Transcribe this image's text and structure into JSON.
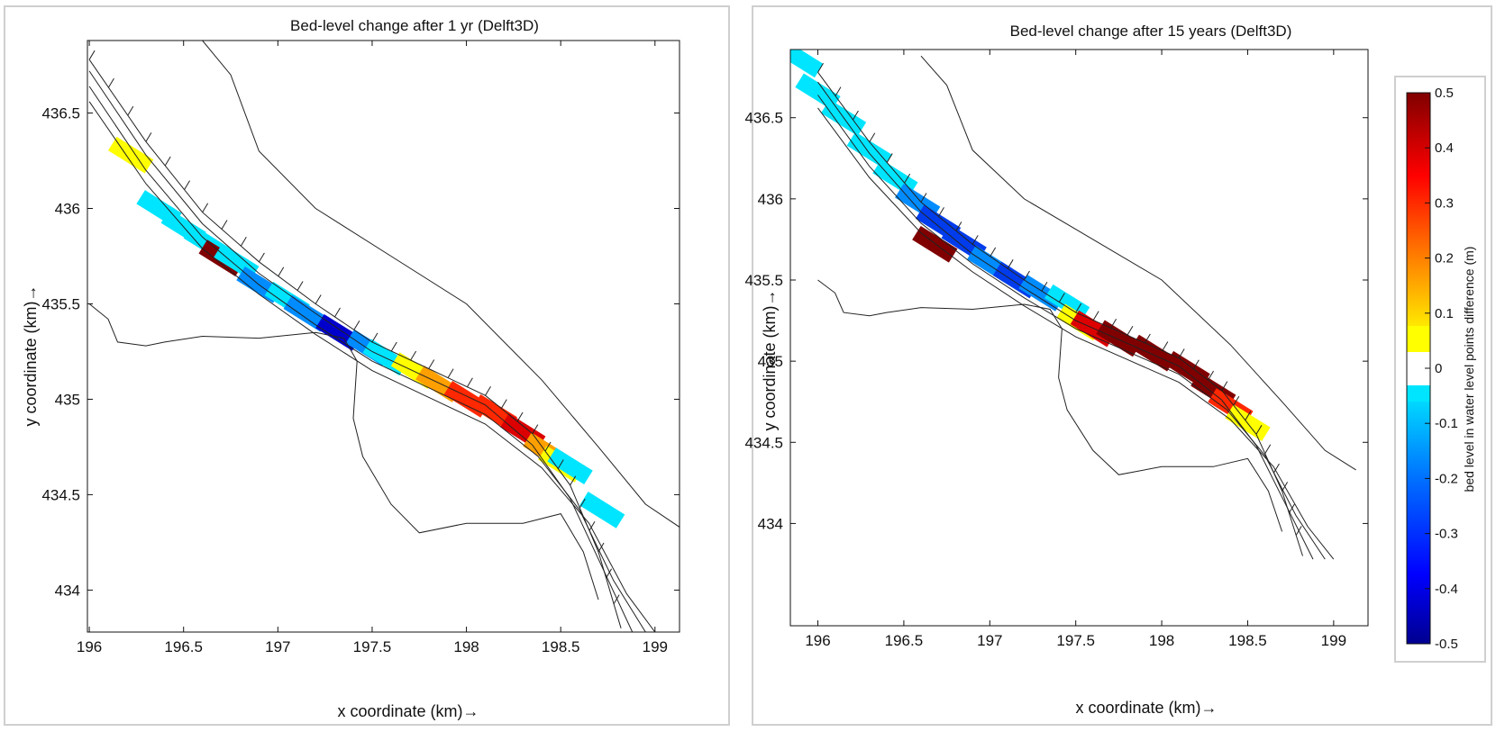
{
  "chart_data": [
    {
      "type": "heatmap",
      "title": "Bed-level change after 1 yr (Delft3D)",
      "xlabel": "x coordinate (km)→",
      "ylabel": "y coordinate (km)→",
      "xlim": [
        195.99,
        199.13
      ],
      "ylim": [
        433.78,
        436.88
      ],
      "xticks": [
        196,
        196.5,
        197,
        197.5,
        198,
        198.5,
        199
      ],
      "xtick_labels": [
        "196",
        "196.5",
        "197",
        "197.5",
        "198",
        "198.5",
        "199"
      ],
      "yticks": [
        434,
        434.5,
        435,
        435.5,
        436,
        436.5
      ],
      "ytick_labels": [
        "434",
        "434.5",
        "435",
        "435.5",
        "436",
        "436.5"
      ],
      "grid": false,
      "cells": [
        {
          "x": 196.22,
          "y": 436.28,
          "v": 0.1
        },
        {
          "x": 196.37,
          "y": 436.0,
          "v": -0.1
        },
        {
          "x": 196.5,
          "y": 435.9,
          "v": -0.1
        },
        {
          "x": 196.62,
          "y": 435.82,
          "v": -0.1
        },
        {
          "x": 196.7,
          "y": 435.74,
          "v": 0.5
        },
        {
          "x": 196.78,
          "y": 435.72,
          "v": -0.1
        },
        {
          "x": 196.9,
          "y": 435.6,
          "v": -0.2
        },
        {
          "x": 197.05,
          "y": 435.52,
          "v": -0.1
        },
        {
          "x": 197.15,
          "y": 435.45,
          "v": -0.2
        },
        {
          "x": 197.32,
          "y": 435.35,
          "v": -0.4
        },
        {
          "x": 197.48,
          "y": 435.27,
          "v": -0.2
        },
        {
          "x": 197.57,
          "y": 435.22,
          "v": -0.1
        },
        {
          "x": 197.72,
          "y": 435.15,
          "v": 0.1
        },
        {
          "x": 197.85,
          "y": 435.08,
          "v": 0.2
        },
        {
          "x": 198.0,
          "y": 435.0,
          "v": 0.3
        },
        {
          "x": 198.15,
          "y": 434.93,
          "v": 0.3
        },
        {
          "x": 198.3,
          "y": 434.83,
          "v": 0.4
        },
        {
          "x": 198.42,
          "y": 434.73,
          "v": 0.2
        },
        {
          "x": 198.5,
          "y": 434.66,
          "v": 0.1
        },
        {
          "x": 198.55,
          "y": 434.65,
          "v": -0.1
        },
        {
          "x": 198.72,
          "y": 434.42,
          "v": -0.1
        }
      ]
    },
    {
      "type": "heatmap",
      "title": "Bed-level change after 15 years (Delft3D)",
      "xlabel": "x coordinate (km)→",
      "ylabel": "y coordinate (km)→",
      "xlim": [
        195.84,
        199.2
      ],
      "ylim": [
        433.37,
        436.92
      ],
      "xticks": [
        196,
        196.5,
        197,
        197.5,
        198,
        198.5,
        199
      ],
      "xtick_labels": [
        "196",
        "196.5",
        "197",
        "197.5",
        "198",
        "198.5",
        "199"
      ],
      "yticks": [
        434,
        434.5,
        435,
        435.5,
        436,
        436.5
      ],
      "ytick_labels": [
        "434",
        "434.5",
        "435",
        "435.5",
        "436",
        "436.5"
      ],
      "grid": false,
      "cells": [
        {
          "x": 195.9,
          "y": 436.86,
          "v": -0.1
        },
        {
          "x": 196.0,
          "y": 436.66,
          "v": -0.1
        },
        {
          "x": 196.15,
          "y": 436.5,
          "v": -0.1
        },
        {
          "x": 196.3,
          "y": 436.3,
          "v": -0.1
        },
        {
          "x": 196.45,
          "y": 436.13,
          "v": -0.1
        },
        {
          "x": 196.58,
          "y": 435.98,
          "v": -0.2
        },
        {
          "x": 196.7,
          "y": 435.85,
          "v": -0.3
        },
        {
          "x": 196.68,
          "y": 435.72,
          "v": 0.5
        },
        {
          "x": 196.85,
          "y": 435.73,
          "v": -0.3
        },
        {
          "x": 197.0,
          "y": 435.6,
          "v": -0.2
        },
        {
          "x": 197.15,
          "y": 435.5,
          "v": -0.3
        },
        {
          "x": 197.3,
          "y": 435.42,
          "v": -0.2
        },
        {
          "x": 197.45,
          "y": 435.36,
          "v": -0.1
        },
        {
          "x": 197.52,
          "y": 435.24,
          "v": 0.1
        },
        {
          "x": 197.6,
          "y": 435.2,
          "v": 0.4
        },
        {
          "x": 197.75,
          "y": 435.14,
          "v": 0.5
        },
        {
          "x": 197.95,
          "y": 435.05,
          "v": 0.5
        },
        {
          "x": 198.15,
          "y": 434.95,
          "v": 0.5
        },
        {
          "x": 198.3,
          "y": 434.82,
          "v": 0.5
        },
        {
          "x": 198.4,
          "y": 434.72,
          "v": 0.3
        },
        {
          "x": 198.5,
          "y": 434.62,
          "v": 0.1
        }
      ],
      "colorbar": {
        "label": "bed level in water level points difference (m)",
        "ticks": [
          "0.5",
          "0.4",
          "0.3",
          "0.2",
          "0.1",
          "0",
          "-0.1",
          "-0.2",
          "-0.3",
          "-0.4",
          "-0.5"
        ],
        "range": [
          -0.5,
          0.5
        ]
      }
    }
  ]
}
